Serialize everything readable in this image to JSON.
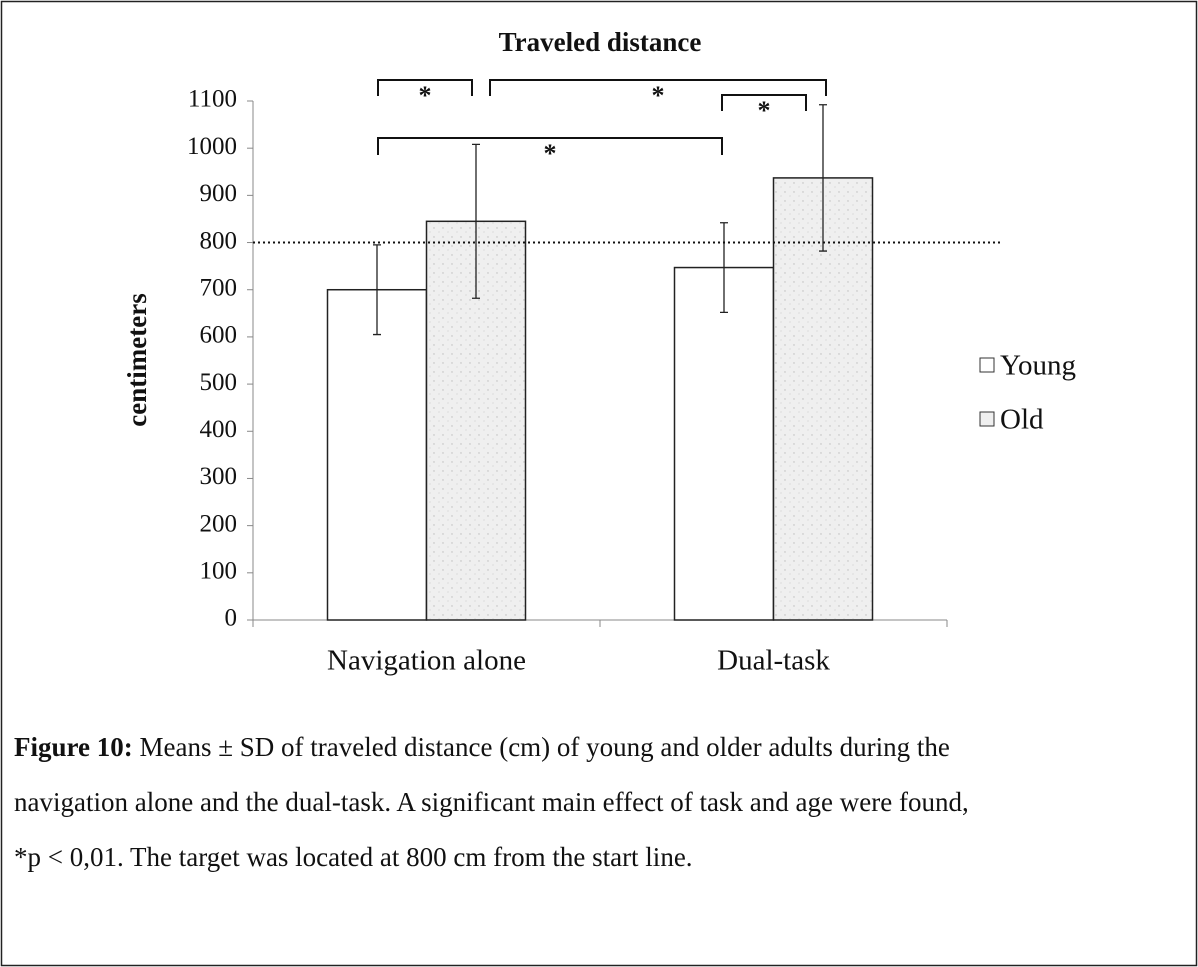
{
  "chart_data": {
    "type": "bar",
    "title": "Traveled distance",
    "y_label": "centimeters",
    "categories": [
      "Navigation alone",
      "Dual-task"
    ],
    "series": [
      {
        "name": "Young",
        "color": "#ffffff",
        "values": [
          700,
          747
        ],
        "errors": [
          95,
          95
        ]
      },
      {
        "name": "Old",
        "color": "#efefef",
        "values": [
          845,
          937
        ],
        "errors": [
          163,
          155
        ]
      }
    ],
    "ylim": [
      0,
      1100
    ],
    "yticks": [
      0,
      100,
      200,
      300,
      400,
      500,
      600,
      700,
      800,
      900,
      1000,
      1100
    ],
    "reference_line": 800,
    "significance_labels": [
      "*",
      "*",
      "*",
      "*"
    ],
    "grid": false,
    "legend": "right"
  },
  "caption": {
    "label": "Figure 10:",
    "lines": [
      "Means ± SD of traveled distance (cm) of young and older adults during the",
      "navigation alone and the dual-task.  A significant main effect of task and age were found,",
      "*p < 0,01.  The target was located at 800 cm from the start line."
    ]
  }
}
